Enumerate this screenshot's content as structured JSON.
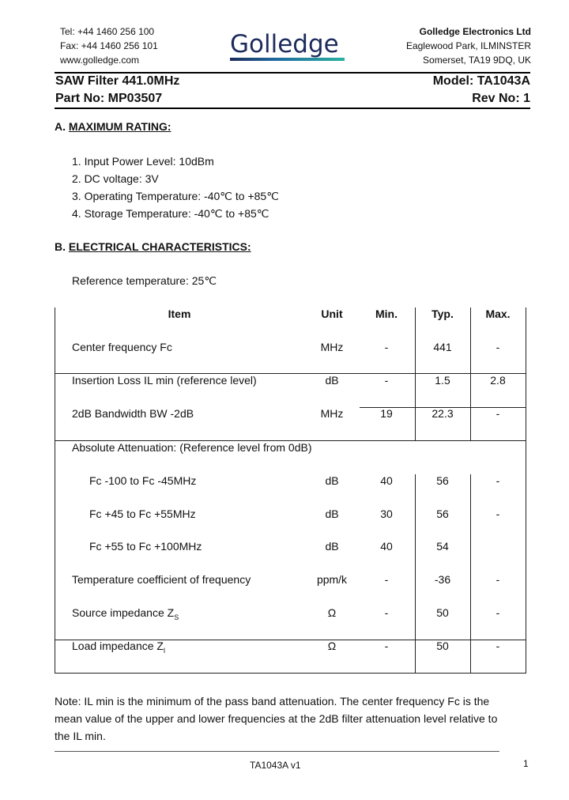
{
  "header": {
    "contact": [
      "Tel: +44 1460 256 100",
      "Fax: +44 1460 256 101",
      "www.golledge.com"
    ],
    "logo_text": "Golledge",
    "company": "Golledge Electronics Ltd",
    "address": [
      "Eaglewood Park, ILMINSTER",
      "Somerset, TA19 9DQ, UK"
    ]
  },
  "title": {
    "product": "SAW Filter 441.0MHz",
    "model": "Model: TA1043A",
    "part": "Part No: MP03507",
    "rev": "Rev No: 1"
  },
  "section_a": {
    "prefix": "A.",
    "heading": "MAXIMUM RATING:",
    "items": [
      "1. Input Power Level: 10dBm",
      "2. DC voltage: 3V",
      "3. Operating Temperature: -40℃ to +85℃",
      "4. Storage Temperature: -40℃ to +85℃"
    ]
  },
  "section_b": {
    "prefix": "B.",
    "heading": "ELECTRICAL CHARACTERISTICS:",
    "reference": "Reference temperature: 25℃"
  },
  "table": {
    "columns": [
      "Item",
      "Unit",
      "Min.",
      "Typ.",
      "Max."
    ],
    "rows": [
      {
        "item": "Center frequency Fc",
        "unit": "MHz",
        "min": "-",
        "typ": "441",
        "max": "-"
      },
      {
        "item": "Insertion Loss IL min (reference level)",
        "unit": "dB",
        "min": "-",
        "typ": "1.5",
        "max": "2.8"
      },
      {
        "item": "2dB Bandwidth BW -2dB",
        "unit": "MHz",
        "min": "19",
        "typ": "22.3",
        "max": "-"
      },
      {
        "item": "Absolute Attenuation: (Reference level from 0dB)",
        "unit": "",
        "min": "",
        "typ": "",
        "max": ""
      },
      {
        "item": "Fc -100 to Fc -45MHz",
        "unit": "dB",
        "min": "40",
        "typ": "56",
        "max": "-"
      },
      {
        "item": "Fc +45 to Fc +55MHz",
        "unit": "dB",
        "min": "30",
        "typ": "56",
        "max": "-"
      },
      {
        "item": "Fc +55 to Fc +100MHz",
        "unit": "dB",
        "min": "40",
        "typ": "54",
        "max": ""
      },
      {
        "item": "Temperature coefficient of frequency",
        "unit": "ppm/k",
        "min": "-",
        "typ": "-36",
        "max": "-"
      },
      {
        "item": "Source impedance Z",
        "item_sub": "S",
        "unit": "Ω",
        "min": "-",
        "typ": "50",
        "max": "-"
      },
      {
        "item": "Load impedance Z",
        "item_sub": "l",
        "unit": "Ω",
        "min": "-",
        "typ": "50",
        "max": "-"
      }
    ]
  },
  "note": [
    "Note: IL min is the minimum of the pass band attenuation. The center frequency Fc is the",
    "mean value of the upper and lower frequencies at the 2dB filter attenuation level relative to",
    "the IL min."
  ],
  "footer": {
    "doc": "TA1043A v1",
    "page": "1"
  }
}
